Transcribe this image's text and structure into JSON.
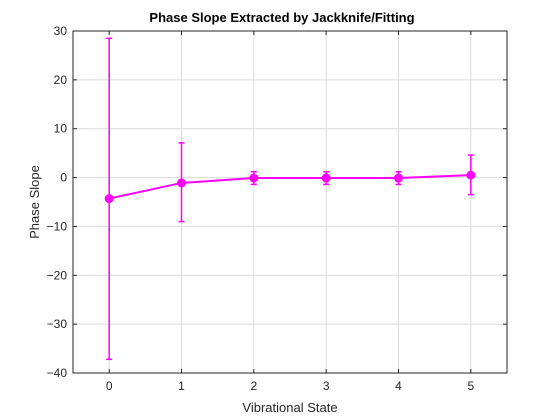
{
  "chart_data": {
    "type": "line",
    "title": "Phase Slope Extracted by Jackknife/Fitting",
    "xlabel": "Vibrational State",
    "ylabel": "Phase Slope",
    "xlim": [
      -0.5,
      5.5
    ],
    "ylim": [
      -40,
      30
    ],
    "xticks": [
      0,
      1,
      2,
      3,
      4,
      5
    ],
    "yticks": [
      -40,
      -30,
      -20,
      -10,
      0,
      10,
      20,
      30
    ],
    "xtick_labels": [
      "0",
      "1",
      "2",
      "3",
      "4",
      "5"
    ],
    "ytick_labels": [
      "−40",
      "−30",
      "−20",
      "−10",
      "0",
      "10",
      "20",
      "30"
    ],
    "grid": true,
    "color": "#ff00ff",
    "series": [
      {
        "x": [
          0,
          1,
          2,
          3,
          4,
          5
        ],
        "y": [
          -4.3,
          -1.1,
          -0.1,
          -0.1,
          -0.1,
          0.5
        ],
        "err_low": [
          -37.2,
          -9.0,
          -1.4,
          -1.4,
          -1.4,
          -3.5
        ],
        "err_high": [
          28.5,
          7.1,
          1.2,
          1.2,
          1.2,
          4.6
        ]
      }
    ]
  }
}
